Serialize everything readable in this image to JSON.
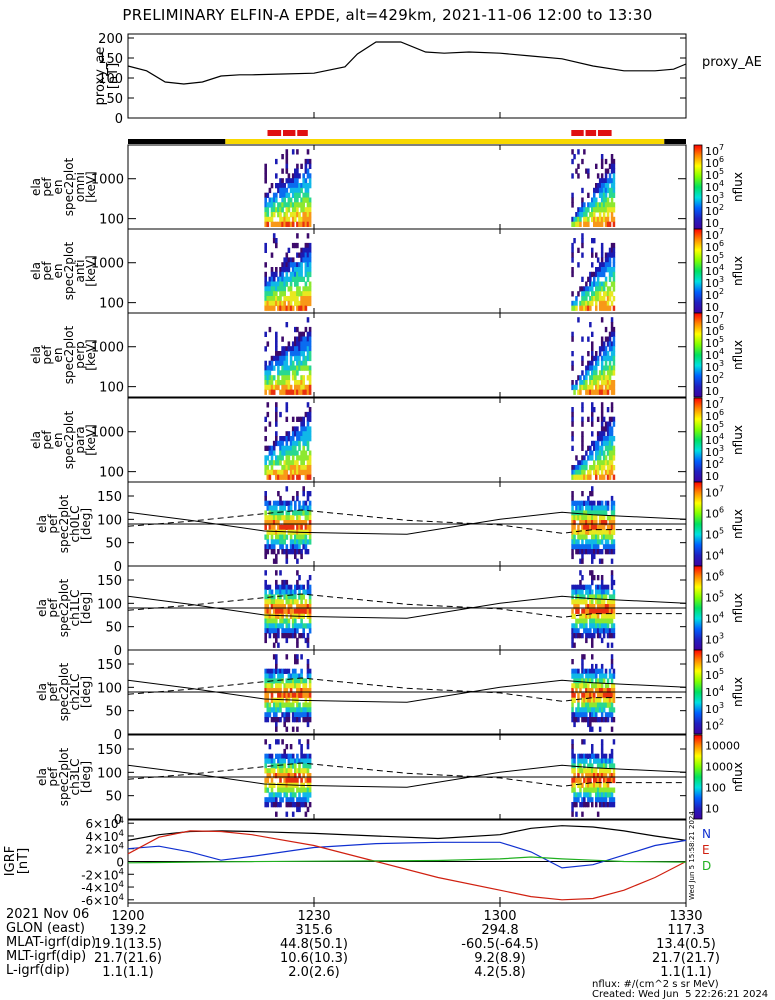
{
  "title": "PRELIMINARY ELFIN-A EPDE, alt=429km, 2021-11-06 12:00 to 13:30",
  "chart_data": {
    "type": "multi-panel time series / spectrogram",
    "time_range": [
      "2021-11-06 12:00",
      "2021-11-06 13:30"
    ],
    "x_tick_labels": [
      "1200",
      "1230",
      "1300",
      "1330"
    ],
    "x_tick_minutes": [
      0,
      30,
      60,
      90
    ],
    "proxy_ae": {
      "ylabel": [
        "proxy_ae",
        "[nT]"
      ],
      "legend": "proxy_AE",
      "yticks": [
        "0",
        "50",
        "100",
        "150",
        "200"
      ],
      "ylim": [
        0,
        210
      ],
      "t_min": [
        0,
        3,
        6,
        9,
        12,
        15,
        18,
        20,
        25,
        30,
        35,
        37,
        40,
        44,
        48,
        51,
        55,
        60,
        65,
        70,
        75,
        80,
        85,
        88,
        90
      ],
      "values": [
        130,
        118,
        90,
        85,
        90,
        105,
        108,
        108,
        110,
        112,
        128,
        160,
        190,
        190,
        165,
        162,
        165,
        162,
        155,
        148,
        130,
        118,
        118,
        122,
        135
      ]
    },
    "science_zones": {
      "bar_colors": [
        "#000000",
        "#f8d800",
        "#000000"
      ],
      "bar_segments_min": [
        [
          0,
          15.7
        ],
        [
          15.7,
          86.5
        ],
        [
          86.5,
          90
        ]
      ],
      "red_segments_min": [
        [
          22.5,
          24.7
        ],
        [
          25.0,
          27.0
        ],
        [
          27.3,
          29.0
        ],
        [
          71.5,
          73.5
        ],
        [
          73.8,
          75.5
        ],
        [
          75.8,
          78.0
        ]
      ],
      "red_color": "#e01010"
    },
    "energy_panels": [
      {
        "label": [
          "ela",
          "pef",
          "en",
          "spec2plot",
          "omni",
          "[keV]"
        ],
        "yticks": [
          "100",
          "1000"
        ]
      },
      {
        "label": [
          "ela",
          "pef",
          "en",
          "spec2plot",
          "anti",
          "[keV]"
        ],
        "yticks": [
          "100",
          "1000"
        ]
      },
      {
        "label": [
          "ela",
          "pef",
          "en",
          "spec2plot",
          "perp",
          "[keV]"
        ],
        "yticks": [
          "100",
          "1000"
        ]
      },
      {
        "label": [
          "ela",
          "pef",
          "en",
          "spec2plot",
          "para",
          "[keV]"
        ],
        "yticks": [
          "100",
          "1000"
        ]
      }
    ],
    "pitch_panels": [
      {
        "label": [
          "ela",
          "pef",
          "spec2plot",
          "ch0LC",
          "[deg]"
        ],
        "yticks": [
          "0",
          "50",
          "100",
          "150"
        ]
      },
      {
        "label": [
          "ela",
          "pef",
          "spec2plot",
          "ch1LC",
          "[deg]"
        ],
        "yticks": [
          "0",
          "50",
          "100",
          "150"
        ]
      },
      {
        "label": [
          "ela",
          "pef",
          "spec2plot",
          "ch2LC",
          "[deg]"
        ],
        "yticks": [
          "0",
          "50",
          "100",
          "150"
        ]
      },
      {
        "label": [
          "ela",
          "pef",
          "spec2plot",
          "ch3LC",
          "[deg]"
        ],
        "yticks": [
          "0",
          "50",
          "100",
          "150"
        ]
      }
    ],
    "pitch_lines": {
      "ylim": [
        0,
        180
      ],
      "t_min": [
        0,
        10,
        22,
        28,
        45,
        60,
        70,
        75,
        90
      ],
      "solid": [
        115,
        98,
        75,
        72,
        68,
        100,
        115,
        110,
        100
      ],
      "dashed": [
        85,
        96,
        112,
        120,
        98,
        88,
        70,
        78,
        78
      ],
      "reference": 90
    },
    "colorbars": [
      {
        "label": "nflux",
        "ticks": [
          "10",
          "10^2",
          "10^3",
          "10^4",
          "10^5",
          "10^6",
          "10^7"
        ]
      },
      {
        "label": "nflux",
        "ticks": [
          "10",
          "10^2",
          "10^3",
          "10^4",
          "10^5",
          "10^6",
          "10^7"
        ]
      },
      {
        "label": "nflux",
        "ticks": [
          "10",
          "10^2",
          "10^3",
          "10^4",
          "10^5",
          "10^6",
          "10^7"
        ]
      },
      {
        "label": "nflux",
        "ticks": [
          "10",
          "10^2",
          "10^3",
          "10^4",
          "10^5",
          "10^6",
          "10^7"
        ]
      },
      {
        "label": "nflux",
        "ticks": [
          "10^4",
          "10^5",
          "10^6",
          "10^7"
        ]
      },
      {
        "label": "nflux",
        "ticks": [
          "10^3",
          "10^4",
          "10^5",
          "10^6"
        ]
      },
      {
        "label": "nflux",
        "ticks": [
          "10^2",
          "10^3",
          "10^4",
          "10^5",
          "10^6"
        ]
      },
      {
        "label": "nflux",
        "ticks": [
          "10",
          "100",
          "1000",
          "10000"
        ]
      }
    ],
    "igrf": {
      "ylabel": [
        "IGRF",
        "[nT]"
      ],
      "yticks": [
        "-6×10^4",
        "-4×10^4",
        "-2×10^4",
        "0",
        "2×10^4",
        "4×10^4",
        "6×10^4"
      ],
      "ylim": [
        -65000,
        65000
      ],
      "legend": [
        {
          "label": "N",
          "color": "#1030d0"
        },
        {
          "label": "E",
          "color": "#d02010"
        },
        {
          "label": "D",
          "color": "#20b020"
        }
      ],
      "stamp": "Wed Jun  5 15:58:21 2024",
      "t_min": [
        0,
        5,
        10,
        15,
        20,
        30,
        40,
        50,
        60,
        65,
        70,
        75,
        80,
        85,
        90
      ],
      "total": [
        33000,
        42000,
        47000,
        48000,
        47000,
        44000,
        40000,
        36000,
        42000,
        52000,
        56000,
        54000,
        48000,
        40000,
        33000
      ],
      "north": [
        20000,
        24000,
        15000,
        2000,
        8000,
        22000,
        28000,
        30000,
        30000,
        15000,
        -10000,
        -5000,
        10000,
        25000,
        33000
      ],
      "east": [
        12000,
        38000,
        48000,
        47000,
        42000,
        25000,
        0,
        -25000,
        -45000,
        -55000,
        -60000,
        -58000,
        -45000,
        -25000,
        0
      ],
      "down": [
        -2000,
        -1500,
        -1000,
        -500,
        -200,
        500,
        1000,
        1500,
        4000,
        7000,
        4000,
        2000,
        0,
        -500,
        -1000
      ]
    }
  },
  "footer": {
    "rows": [
      {
        "label": "2021 Nov 06",
        "values": [
          "1200",
          "1230",
          "1300",
          "1330"
        ]
      },
      {
        "label": "GLON (east)",
        "values": [
          "139.2",
          "315.6",
          "294.8",
          "117.3"
        ]
      },
      {
        "label": "MLAT-igrf(dip)",
        "values": [
          "19.1(13.5)",
          "44.8(50.1)",
          "-60.5(-64.5)",
          "13.4(0.5)"
        ]
      },
      {
        "label": "MLT-igrf(dip)",
        "values": [
          "21.7(21.6)",
          "10.6(10.3)",
          "9.2(8.9)",
          "21.7(21.7)"
        ]
      },
      {
        "label": "L-igrf(dip)",
        "values": [
          "1.1(1.1)",
          "2.0(2.6)",
          "4.2(5.8)",
          "1.1(1.1)"
        ]
      }
    ],
    "nflux_units": "nflux: #/(cm^2 s sr MeV)",
    "created": "Created: Wed Jun  5 22:26:21 2024"
  }
}
